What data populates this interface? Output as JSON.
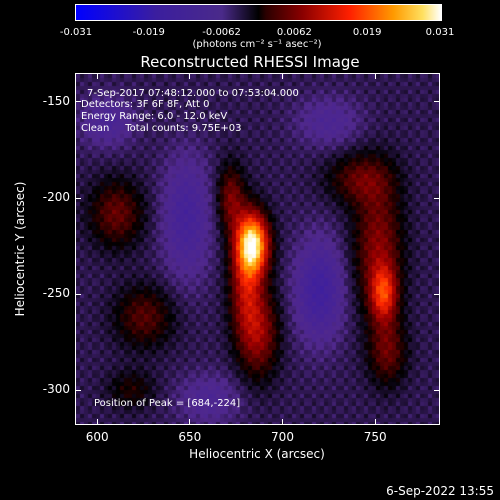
{
  "colorbar": {
    "ticks": [
      "-0.031",
      "-0.019",
      "-0.0062",
      "0.0062",
      "0.019",
      "0.031"
    ],
    "unit": "(photons cm⁻² s⁻¹ asec⁻²)"
  },
  "chart_data": {
    "type": "heatmap",
    "title": "Reconstructed RHESSI Image",
    "xlabel": "Heliocentric X (arcsec)",
    "ylabel": "Heliocentric Y (arcsec)",
    "xlim": [
      588,
      785
    ],
    "ylim": [
      -318,
      -135
    ],
    "xticks": [
      600,
      650,
      700,
      750
    ],
    "yticks": [
      -150,
      -200,
      -250,
      -300
    ],
    "color_range": [
      -0.031,
      0.031
    ],
    "peak": [
      684,
      -224
    ],
    "sources": [
      {
        "x": 684,
        "y": -224,
        "sx": 6,
        "sy": 11,
        "amp": 0.03
      },
      {
        "x": 680,
        "y": -245,
        "sx": 6,
        "sy": 22,
        "amp": 0.013
      },
      {
        "x": 672,
        "y": -200,
        "sx": 5,
        "sy": 12,
        "amp": 0.01
      },
      {
        "x": 688,
        "y": -270,
        "sx": 7,
        "sy": 16,
        "amp": 0.011
      },
      {
        "x": 755,
        "y": -250,
        "sx": 5,
        "sy": 10,
        "amp": 0.016
      },
      {
        "x": 752,
        "y": -225,
        "sx": 9,
        "sy": 24,
        "amp": 0.011
      },
      {
        "x": 757,
        "y": -280,
        "sx": 7,
        "sy": 12,
        "amp": 0.009
      },
      {
        "x": 742,
        "y": -190,
        "sx": 12,
        "sy": 9,
        "amp": 0.008
      },
      {
        "x": 610,
        "y": -208,
        "sx": 10,
        "sy": 12,
        "amp": 0.009
      },
      {
        "x": 625,
        "y": -262,
        "sx": 11,
        "sy": 11,
        "amp": 0.008
      },
      {
        "x": 618,
        "y": -300,
        "sx": 9,
        "sy": 7,
        "amp": 0.005
      },
      {
        "x": 720,
        "y": -248,
        "sx": 9,
        "sy": 18,
        "amp": -0.01
      },
      {
        "x": 648,
        "y": -210,
        "sx": 9,
        "sy": 22,
        "amp": -0.008
      },
      {
        "x": 605,
        "y": -160,
        "sx": 10,
        "sy": 9,
        "amp": -0.006
      },
      {
        "x": 725,
        "y": -160,
        "sx": 12,
        "sy": 9,
        "amp": -0.005
      },
      {
        "x": 660,
        "y": -305,
        "sx": 12,
        "sy": 9,
        "amp": -0.005
      }
    ]
  },
  "annotations": {
    "time": "7-Sep-2017 07:48:12.000 to 07:53:04.000",
    "detectors": "Detectors: 3F 6F 8F, Att 0",
    "energy": "Energy Range: 6.0 - 12.0 keV",
    "clean": "Clean     Total counts: 9.75E+03",
    "peak": "Position of Peak = [684,-224]"
  },
  "footer": "6-Sep-2022 13:55"
}
